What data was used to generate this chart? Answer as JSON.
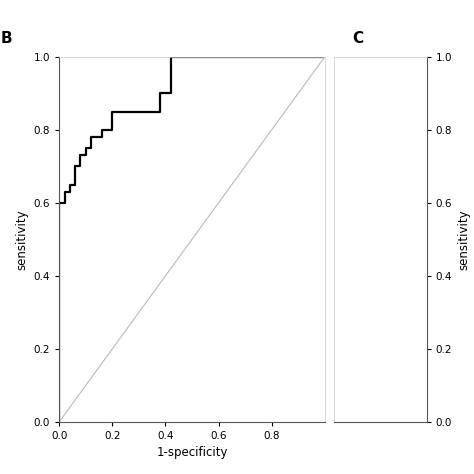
{
  "panel_b_label": "B",
  "panel_c_label": "C",
  "xlabel": "1-specificity",
  "ylabel": "sensitivity",
  "xlim": [
    0.0,
    1.0
  ],
  "ylim": [
    0.0,
    1.0
  ],
  "xticks": [
    0.0,
    0.2,
    0.4,
    0.6,
    0.8
  ],
  "yticks": [
    0.0,
    0.2,
    0.4,
    0.6,
    0.8,
    1.0
  ],
  "roc_x": [
    0.0,
    0.0,
    0.02,
    0.02,
    0.04,
    0.04,
    0.06,
    0.06,
    0.08,
    0.08,
    0.1,
    0.1,
    0.12,
    0.12,
    0.16,
    0.16,
    0.2,
    0.2,
    0.38,
    0.38,
    0.42,
    0.42,
    0.5,
    0.5,
    1.0
  ],
  "roc_y": [
    0.0,
    0.6,
    0.6,
    0.63,
    0.63,
    0.65,
    0.65,
    0.7,
    0.7,
    0.73,
    0.73,
    0.75,
    0.75,
    0.78,
    0.78,
    0.8,
    0.8,
    0.85,
    0.85,
    0.9,
    0.9,
    1.0,
    1.0,
    1.0,
    1.0
  ],
  "roc_color": "#000000",
  "diag_color": "#bbbbbb",
  "roc_lw": 1.6,
  "diag_lw": 0.8,
  "background_color": "#ffffff",
  "tick_fontsize": 7.5,
  "label_fontsize": 8.5,
  "panel_fontsize": 11,
  "panel_weight": "bold",
  "spine_color": "#555555",
  "top_spine_color": "#cccccc"
}
